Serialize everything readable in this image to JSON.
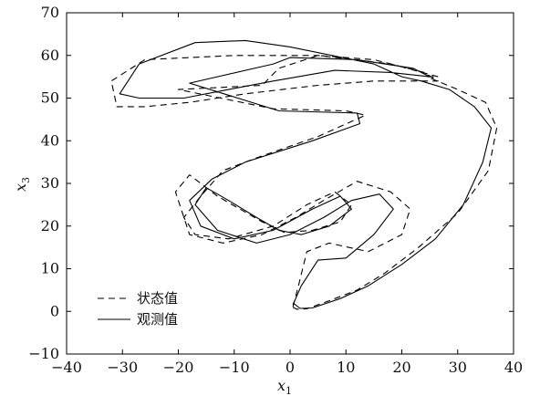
{
  "chart_data": {
    "type": "line",
    "xlabel": "x",
    "xlabel_sub": "1",
    "ylabel": "x",
    "ylabel_sub": "3",
    "xlim": [
      -40,
      40
    ],
    "ylim": [
      -10,
      70
    ],
    "xticks": [
      "-40",
      "-30",
      "-20",
      "-10",
      "0",
      "10",
      "20",
      "30",
      "40"
    ],
    "yticks": [
      "-10",
      "0",
      "10",
      "20",
      "30",
      "40",
      "50",
      "60",
      "70"
    ],
    "grid": false,
    "legend_position": "bottom-left",
    "series": [
      {
        "name": "状态值",
        "style": "dashed",
        "color": "#000000",
        "x": [
          0.5,
          1.2,
          3.0,
          7.0,
          12.0,
          17.0,
          23.0,
          30.0,
          35.5,
          37.0,
          35.0,
          30.0,
          24.5,
          26.5,
          18.0,
          5.0,
          -10.0,
          -26.0,
          -32.0,
          -31.0,
          -26.0,
          -18.0,
          -8.0,
          5.0,
          15.0,
          23.0,
          26.5,
          24.0,
          15.0,
          5.0,
          -2.0,
          -5.0,
          -20.0,
          -3.0,
          10.0,
          13.5,
          5.0,
          -6.0,
          -12.0,
          -16.0,
          -19.0,
          -17.0,
          -11.0,
          -3.0,
          3.0,
          8.0,
          11.0,
          9.0,
          4.0,
          -1.0,
          -5.0,
          -13.0,
          -18.0,
          -20.5,
          -18.0,
          -12.0,
          -5.0,
          1.0,
          6.0,
          12.0,
          18.0,
          21.5,
          20.0,
          14.0,
          7.0,
          3.0,
          1.5,
          0.5
        ],
        "y": [
          1.0,
          0.5,
          0.6,
          2.5,
          5.0,
          9.0,
          15.0,
          23.0,
          33.0,
          43.0,
          49.0,
          52.0,
          55.0,
          55.0,
          58.0,
          60.0,
          60.0,
          59.0,
          54.0,
          48.0,
          48.0,
          49.0,
          51.0,
          53.0,
          54.0,
          54.0,
          54.0,
          56.0,
          59.0,
          60.0,
          57.0,
          53.0,
          52.0,
          47.5,
          47.0,
          46.0,
          41.0,
          36.0,
          33.0,
          27.0,
          22.0,
          18.0,
          17.0,
          20.0,
          25.0,
          28.0,
          25.0,
          21.0,
          19.0,
          18.5,
          21.0,
          27.0,
          32.0,
          28.0,
          18.0,
          16.0,
          18.0,
          22.0,
          26.0,
          30.5,
          28.0,
          24.0,
          18.0,
          14.0,
          16.0,
          14.0,
          6.0,
          1.0
        ]
      },
      {
        "name": "观测值",
        "style": "solid",
        "color": "#000000",
        "x": [
          0.5,
          1.8,
          4.0,
          9.0,
          14.0,
          20.0,
          26.0,
          31.0,
          34.5,
          36.0,
          33.0,
          28.5,
          23.5,
          20.0,
          15.0,
          0.0,
          -8.0,
          -17.0,
          -27.0,
          -30.5,
          -27.0,
          -19.0,
          -11.0,
          -3.0,
          8.0,
          18.0,
          25.0,
          22.0,
          12.0,
          0.0,
          -3.0,
          -18.0,
          -2.0,
          12.0,
          12.5,
          4.0,
          -8.0,
          -14.0,
          -18.0,
          -16.0,
          -10.0,
          -3.0,
          4.0,
          9.0,
          11.0,
          7.0,
          2.0,
          -2.0,
          -6.0,
          -11.0,
          -15.0,
          -17.0,
          -13.0,
          -6.0,
          0.0,
          6.0,
          11.0,
          16.0,
          18.5,
          15.0,
          10.0,
          5.0,
          2.0,
          0.5
        ],
        "y": [
          2.0,
          0.7,
          0.8,
          3.0,
          6.0,
          11.0,
          17.0,
          25.0,
          35.0,
          43.0,
          48.0,
          52.0,
          54.0,
          55.0,
          58.0,
          62.0,
          63.5,
          63.0,
          58.0,
          51.0,
          50.0,
          50.0,
          52.0,
          54.0,
          56.5,
          56.0,
          55.0,
          57.0,
          59.0,
          59.5,
          58.0,
          53.5,
          47.0,
          46.5,
          44.0,
          40.0,
          35.0,
          31.0,
          26.0,
          20.0,
          17.0,
          19.0,
          24.0,
          27.0,
          24.0,
          20.0,
          18.0,
          19.0,
          22.0,
          26.0,
          29.0,
          25.0,
          19.0,
          16.0,
          18.0,
          22.0,
          26.0,
          27.5,
          24.0,
          18.0,
          12.5,
          12.0,
          6.0,
          1.5
        ]
      }
    ]
  }
}
